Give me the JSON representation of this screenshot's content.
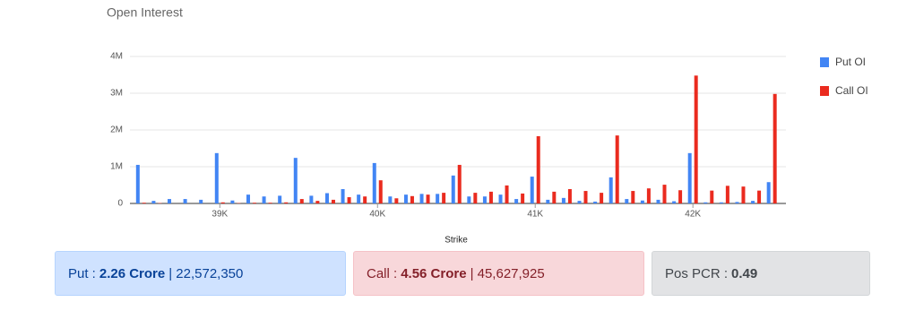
{
  "chart_data": {
    "type": "bar",
    "title": "Open Interest",
    "x_label": "Strike",
    "x": [
      38500,
      38600,
      38700,
      38800,
      38900,
      39000,
      39100,
      39200,
      39300,
      39400,
      39500,
      39600,
      39700,
      39800,
      39900,
      40000,
      40100,
      40200,
      40300,
      40400,
      40500,
      40600,
      40700,
      40800,
      40900,
      41000,
      41100,
      41200,
      41300,
      41400,
      41500,
      41600,
      41700,
      41800,
      41900,
      42000,
      42100,
      42200,
      42300,
      42400,
      42500
    ],
    "series": [
      {
        "name": "Put OI",
        "color": "#4285f4",
        "values": [
          1050000,
          70000,
          120000,
          120000,
          100000,
          1370000,
          80000,
          240000,
          190000,
          210000,
          1240000,
          210000,
          280000,
          390000,
          240000,
          1100000,
          190000,
          240000,
          260000,
          260000,
          760000,
          190000,
          190000,
          240000,
          120000,
          730000,
          100000,
          150000,
          70000,
          50000,
          710000,
          120000,
          80000,
          100000,
          60000,
          1370000,
          30000,
          30000,
          40000,
          70000,
          580000
        ]
      },
      {
        "name": "Call OI",
        "color": "#ea2b1f",
        "values": [
          20000,
          10000,
          0,
          0,
          0,
          30000,
          10000,
          20000,
          20000,
          30000,
          120000,
          70000,
          100000,
          170000,
          190000,
          630000,
          140000,
          200000,
          240000,
          290000,
          1050000,
          290000,
          320000,
          490000,
          270000,
          1830000,
          320000,
          390000,
          340000,
          290000,
          1850000,
          340000,
          410000,
          510000,
          360000,
          3480000,
          350000,
          480000,
          460000,
          350000,
          2980000
        ]
      }
    ],
    "xlim": [
      38430,
      42590
    ],
    "xticks": [
      {
        "value": 39000,
        "label": "39K"
      },
      {
        "value": 40000,
        "label": "40K"
      },
      {
        "value": 41000,
        "label": "41K"
      },
      {
        "value": 42000,
        "label": "42K"
      }
    ],
    "ylim": [
      0,
      4000000
    ],
    "yticks": [
      0,
      {
        "value": 1000000,
        "label": "1M"
      },
      {
        "value": 2000000,
        "label": "2M"
      },
      {
        "value": 3000000,
        "label": "3M"
      },
      {
        "value": 4000000,
        "label": "4M"
      }
    ],
    "grid": true,
    "legend": "right"
  },
  "summary": [
    {
      "label": "Put :",
      "value": "2.26 Crore",
      "detail": "| 22,572,350"
    },
    {
      "label": "Call :",
      "value": "4.56 Crore",
      "detail": "| 45,627,925"
    },
    {
      "label": "Pos PCR :",
      "value": "0.49"
    }
  ]
}
